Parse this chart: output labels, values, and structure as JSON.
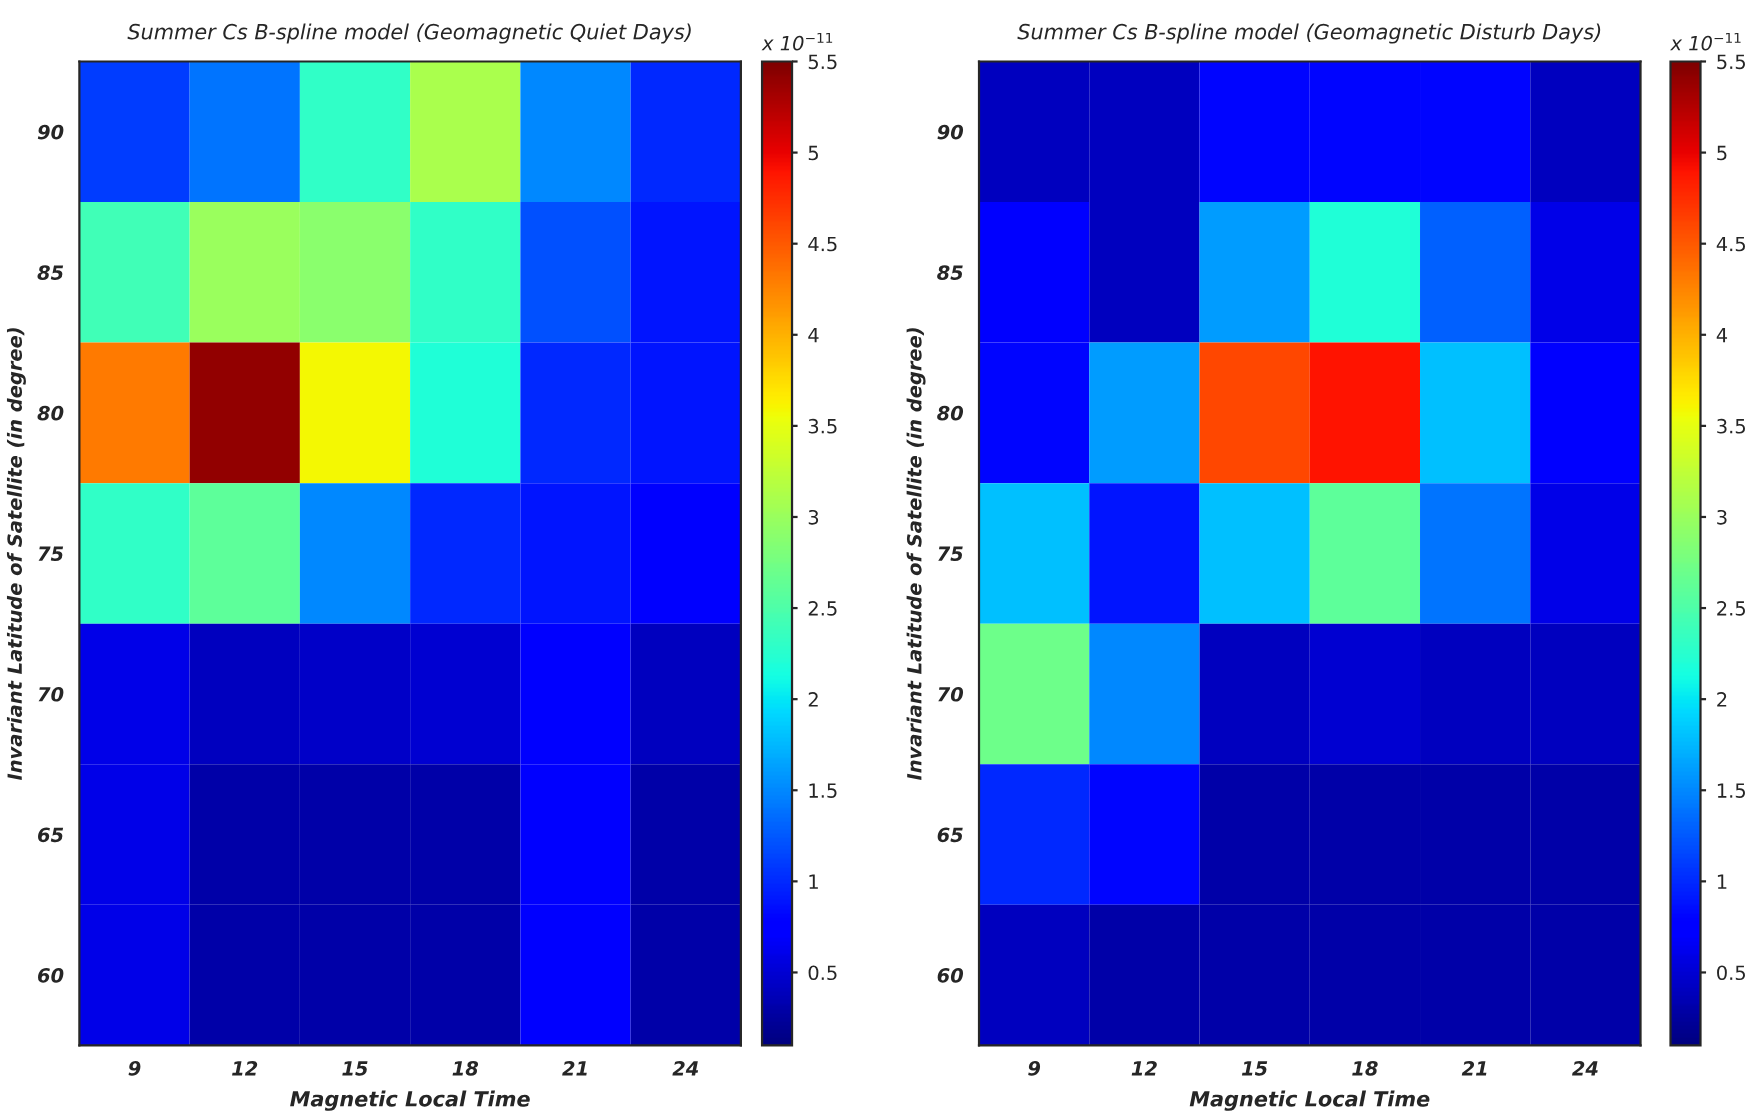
{
  "chart_data": [
    {
      "type": "heatmap",
      "title": "Summer Cs B-spline model (Geomagnetic Quiet Days)",
      "xlabel": "Magnetic Local Time",
      "ylabel": "Invariant Latitude of Satellite (in degree)",
      "clabel": "x 10$^{−11}$",
      "categories": [
        "9",
        "12",
        "15",
        "18",
        "21",
        "24"
      ],
      "y_categories": [
        "90",
        "85",
        "80",
        "75",
        "70",
        "65",
        "60"
      ],
      "cells": [
        [
          1.1,
          1.4,
          2.3,
          3.1,
          1.5,
          1.0
        ],
        [
          2.4,
          3.0,
          2.9,
          2.3,
          1.2,
          0.9
        ],
        [
          4.3,
          5.4,
          3.6,
          2.2,
          1.0,
          0.9
        ],
        [
          2.3,
          2.6,
          1.5,
          1.0,
          0.9,
          0.7
        ],
        [
          0.6,
          0.4,
          0.45,
          0.5,
          0.7,
          0.4
        ],
        [
          0.6,
          0.3,
          0.3,
          0.3,
          0.7,
          0.3
        ],
        [
          0.6,
          0.3,
          0.3,
          0.3,
          0.7,
          0.3
        ]
      ],
      "clim": [
        0.1,
        5.5
      ],
      "cticks": [
        0.5,
        1,
        1.5,
        2,
        2.5,
        3,
        3.5,
        4,
        4.5,
        5,
        5.5
      ]
    },
    {
      "type": "heatmap",
      "title": "Summer Cs B-spline model (Geomagnetic Disturb Days)",
      "xlabel": "Magnetic Local Time",
      "ylabel": "Invariant Latitude of Satellite (in degree)",
      "clabel": "x 10$^{−11}$",
      "categories": [
        "9",
        "12",
        "15",
        "18",
        "21",
        "24"
      ],
      "y_categories": [
        "90",
        "85",
        "80",
        "75",
        "70",
        "65",
        "60"
      ],
      "cells": [
        [
          0.4,
          0.4,
          0.8,
          0.8,
          0.8,
          0.4
        ],
        [
          0.7,
          0.4,
          1.6,
          2.2,
          1.3,
          0.6
        ],
        [
          0.8,
          1.6,
          4.6,
          4.9,
          1.8,
          0.7
        ],
        [
          1.8,
          0.9,
          1.8,
          2.6,
          1.4,
          0.6
        ],
        [
          2.7,
          1.5,
          0.4,
          0.5,
          0.4,
          0.4
        ],
        [
          1.0,
          0.8,
          0.3,
          0.3,
          0.3,
          0.3
        ],
        [
          0.4,
          0.3,
          0.3,
          0.3,
          0.3,
          0.3
        ]
      ],
      "clim": [
        0.1,
        5.5
      ],
      "cticks": [
        0.5,
        1,
        1.5,
        2,
        2.5,
        3,
        3.5,
        4,
        4.5,
        5,
        5.5
      ]
    }
  ]
}
